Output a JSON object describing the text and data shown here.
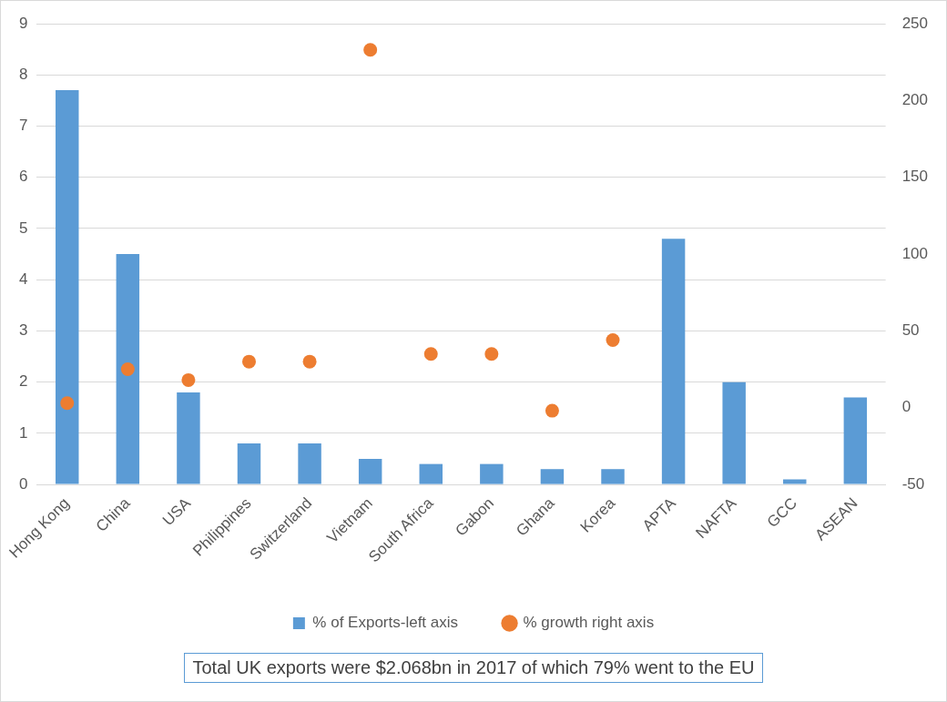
{
  "chart_data": {
    "type": "bar",
    "categories": [
      "Hong Kong",
      "China",
      "USA",
      "Philippines",
      "Switzerland",
      "Vietnam",
      "South Africa",
      "Gabon",
      "Ghana",
      "Korea",
      "APTA",
      "NAFTA",
      "GCC",
      "ASEAN"
    ],
    "series": [
      {
        "name": "% of Exports-left axis",
        "color": "#5b9bd5",
        "values": [
          7.7,
          4.5,
          1.8,
          0.8,
          0.8,
          0.5,
          0.4,
          0.4,
          0.3,
          0.3,
          4.8,
          2.0,
          0.1,
          1.7
        ]
      },
      {
        "name": "% growth right axis",
        "type": "scatter",
        "axis": "y2",
        "color": "#ed7d31",
        "values": [
          3,
          25,
          18,
          30,
          30,
          233,
          35,
          35,
          -2,
          44,
          null,
          null,
          null,
          null
        ]
      }
    ],
    "ylim": [
      0,
      9
    ],
    "yticks": [
      0,
      1,
      2,
      3,
      4,
      5,
      6,
      7,
      8,
      9
    ],
    "y2lim": [
      -50,
      250
    ],
    "y2ticks": [
      -50,
      0,
      50,
      100,
      150,
      200,
      250
    ],
    "grid": "y",
    "legend": "bottom",
    "marker": "circle",
    "annotations": [
      "Total UK exports were $2.068bn in 2017 of which 79% went to the EU"
    ]
  }
}
